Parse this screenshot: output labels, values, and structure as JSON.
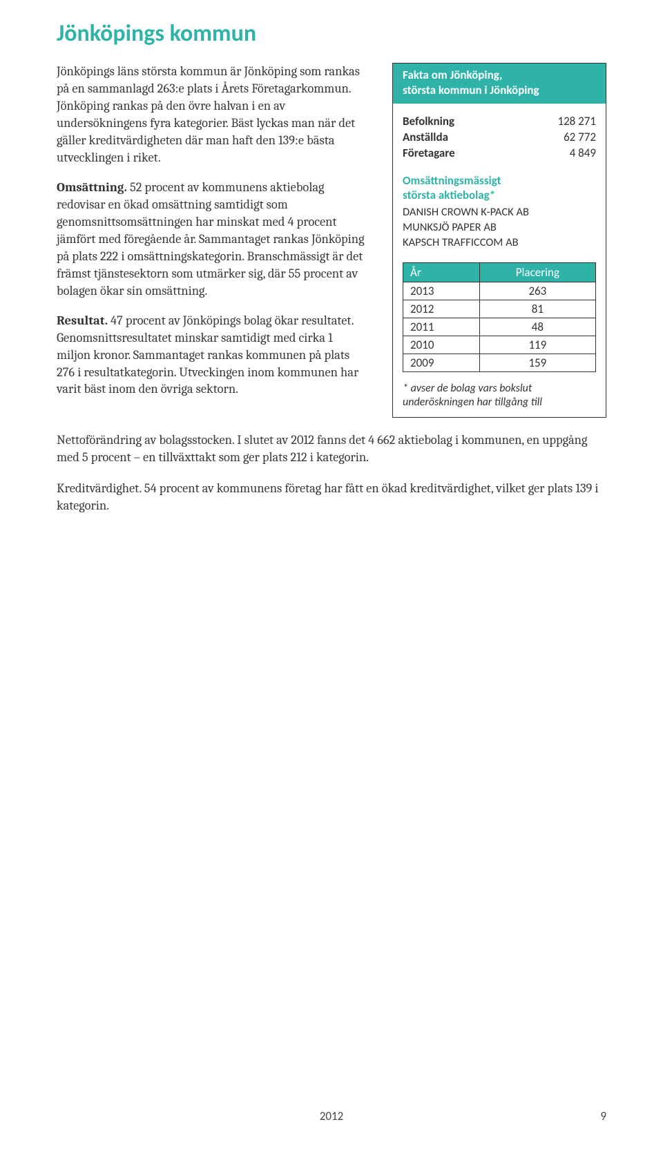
{
  "title": "Jönköpings kommun",
  "paragraphs": {
    "p1": "Jönköpings läns största kommun är Jönköping som rankas på en sammanlagd 263:e plats i Årets Företagarkommun. Jönköping rankas på den övre halvan i en av undersökningens fyra kategorier. Bäst lyckas man när det gäller kreditvärdigheten där man haft den 139:e bästa utvecklingen i riket.",
    "p2_lead": "Omsättning.",
    "p2_body": " 52 procent av kommunens aktiebolag redovisar en ökad omsättning samtidigt som genomsnittsomsättningen har minskat med 4 procent jämfört med föregående år. Sammantaget rankas Jönköping på plats 222 i omsättningskategorin. Branschmässigt är det främst tjänstesektorn som utmärker sig, där 55 procent av bolagen ökar sin omsättning.",
    "p3_lead": "Resultat.",
    "p3_body": " 47 procent av Jönköpings bolag ökar resultatet. Genomsnittsresultatet minskar samtidigt med cirka 1 miljon kronor. Sammantaget rankas kommunen på plats 276 i resultatkategorin. Utveckingen inom kommunen har varit bäst inom den övriga sektorn.",
    "p4_lead": "Nettoförändring av bolagsstocken.",
    "p4_body": " I slutet av 2012 fanns det 4 662 aktiebolag i kommunen, en uppgång med 5 procent – en tillväxttakt som ger plats 212 i kategorin.",
    "p5_lead": "Kreditvärdighet",
    "p5_body": ". 54 procent av kommunens företag har fått en ökad kreditvärdighet, vilket ger plats 139 i kategorin."
  },
  "factbox": {
    "header_line1": "Fakta om Jönköping,",
    "header_line2": "största kommun i Jönköping",
    "stats": [
      {
        "label": "Befolkning",
        "value": "128 271"
      },
      {
        "label": "Anställda",
        "value": "62 772"
      },
      {
        "label": "Företagare",
        "value": "4 849"
      }
    ],
    "subheading_line1": "Omsättningsmässigt",
    "subheading_line2": "största aktiebolag*",
    "companies": [
      "DANISH CROWN K-PACK AB",
      "MUNKSJÖ PAPER AB",
      "KAPSCH TRAFFICCOM AB"
    ],
    "rank_headers": {
      "year": "År",
      "placement": "Placering"
    },
    "rankings": [
      {
        "year": "2013",
        "place": "263"
      },
      {
        "year": "2012",
        "place": "81"
      },
      {
        "year": "2011",
        "place": "48"
      },
      {
        "year": "2010",
        "place": "119"
      },
      {
        "year": "2009",
        "place": "159"
      }
    ],
    "footnote": "* avser de bolag vars bokslut underöskningen har tillgång till"
  },
  "footer": {
    "year": "2012",
    "page": "9"
  },
  "colors": {
    "teal": "#2fb3a9",
    "text": "#3a3a3a",
    "border": "#333333",
    "background": "#ffffff"
  }
}
